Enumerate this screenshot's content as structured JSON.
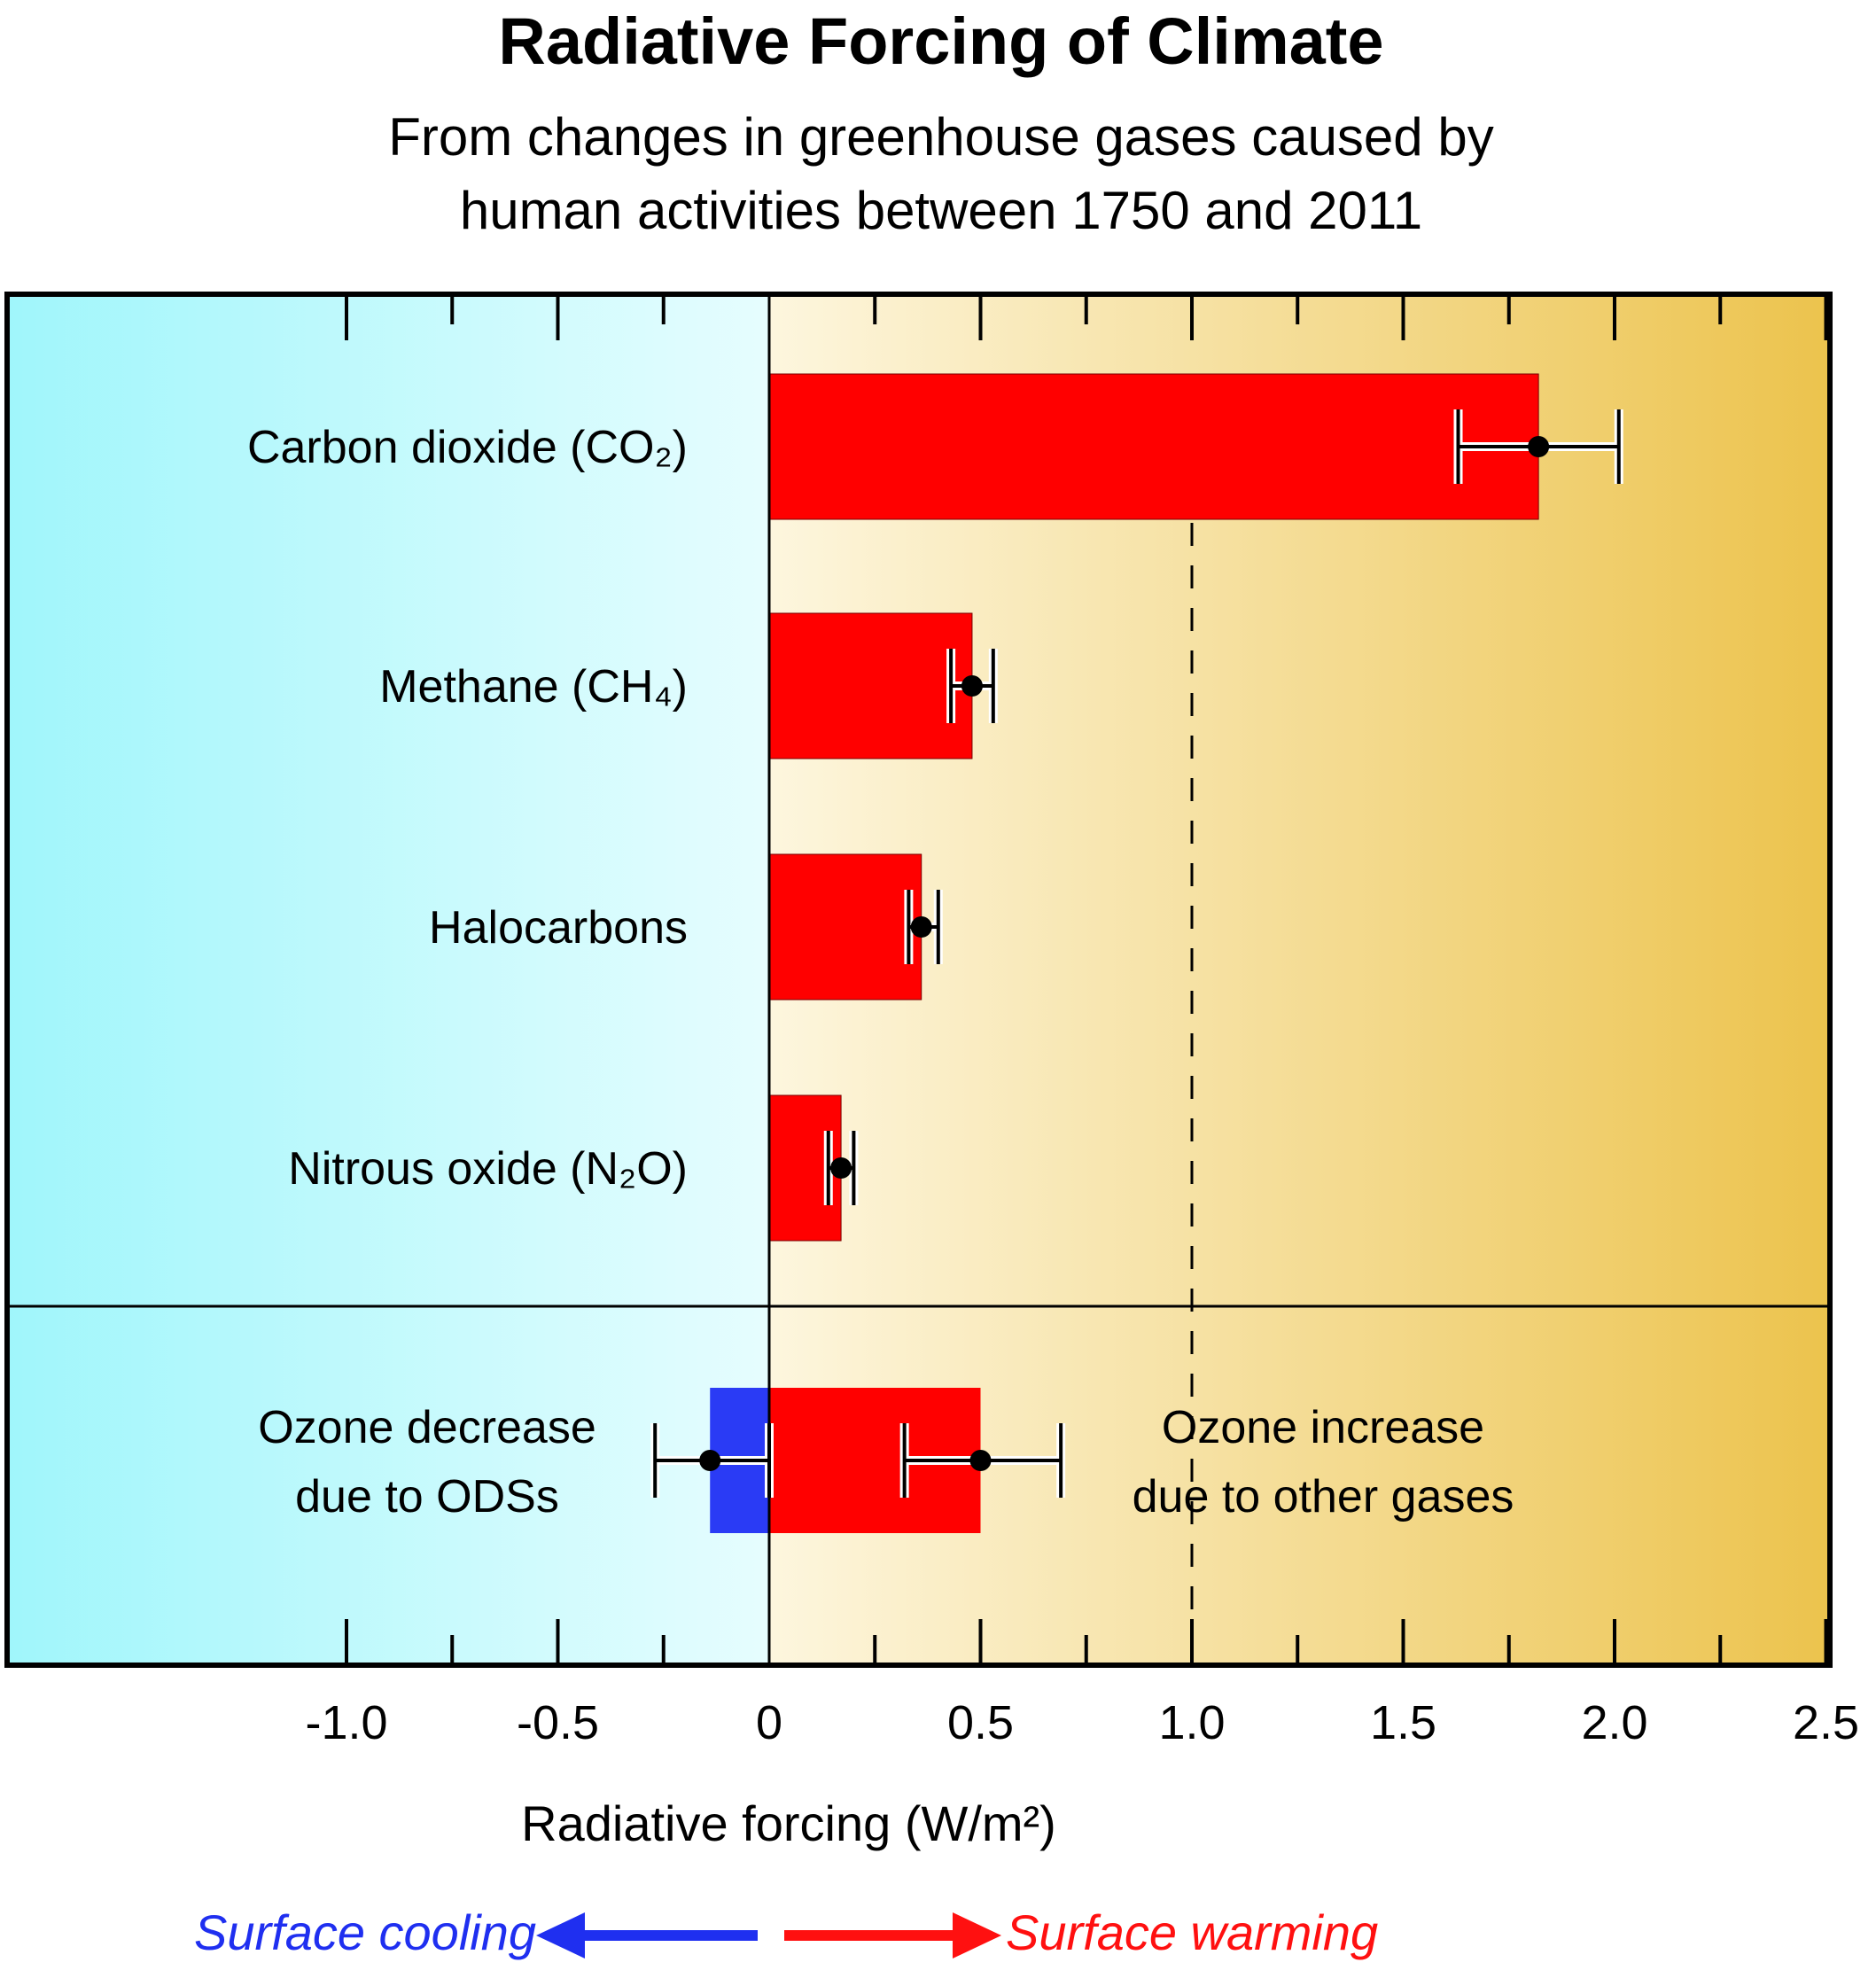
{
  "chart_data": {
    "type": "bar",
    "title": "Radiative Forcing of Climate",
    "subtitle_lines": [
      "From changes in greenhouse gases caused by",
      "human activities between 1750 and 2011"
    ],
    "xlabel": "Radiative forcing  (W/m²)",
    "xlim": [
      -1.8,
      2.5
    ],
    "xticks": [
      -1.0,
      -0.5,
      0,
      0.5,
      1.0,
      1.5,
      2.0,
      2.5
    ],
    "xtick_labels": [
      "-1.0",
      "-0.5",
      "0",
      "0.5",
      "1.0",
      "1.5",
      "2.0",
      "2.5"
    ],
    "reference_line": 1.0,
    "categories": [
      {
        "label": "Carbon dioxide (CO₂)",
        "value": 1.82,
        "err_low": 1.63,
        "err_high": 2.01,
        "color": "#ff0000"
      },
      {
        "label": "Methane (CH₄)",
        "value": 0.48,
        "err_low": 0.43,
        "err_high": 0.53,
        "color": "#ff0000"
      },
      {
        "label": "Halocarbons",
        "value": 0.36,
        "err_low": 0.33,
        "err_high": 0.4,
        "color": "#ff0000"
      },
      {
        "label": "Nitrous oxide (N₂O)",
        "value": 0.17,
        "err_low": 0.14,
        "err_high": 0.2,
        "color": "#ff0000"
      }
    ],
    "ozone": {
      "decrease": {
        "label_lines": [
          "Ozone decrease",
          "due to ODSs"
        ],
        "value": -0.14,
        "err_low": -0.27,
        "err_high": 0.0,
        "color": "#2a3bf5"
      },
      "increase": {
        "label_lines": [
          "Ozone increase",
          "due to other gases"
        ],
        "value": 0.5,
        "err_low": 0.32,
        "err_high": 0.69,
        "color": "#ff0000"
      }
    },
    "legend": {
      "cooling": "Surface cooling",
      "warming": "Surface warming",
      "cooling_color": "#1f2ff0",
      "warming_color": "#ff1010"
    },
    "background": {
      "negative_gradient": [
        "#a0f6fb",
        "#e6fdfe"
      ],
      "positive_gradient": [
        "#fdf6de",
        "#ecc34d"
      ]
    }
  }
}
